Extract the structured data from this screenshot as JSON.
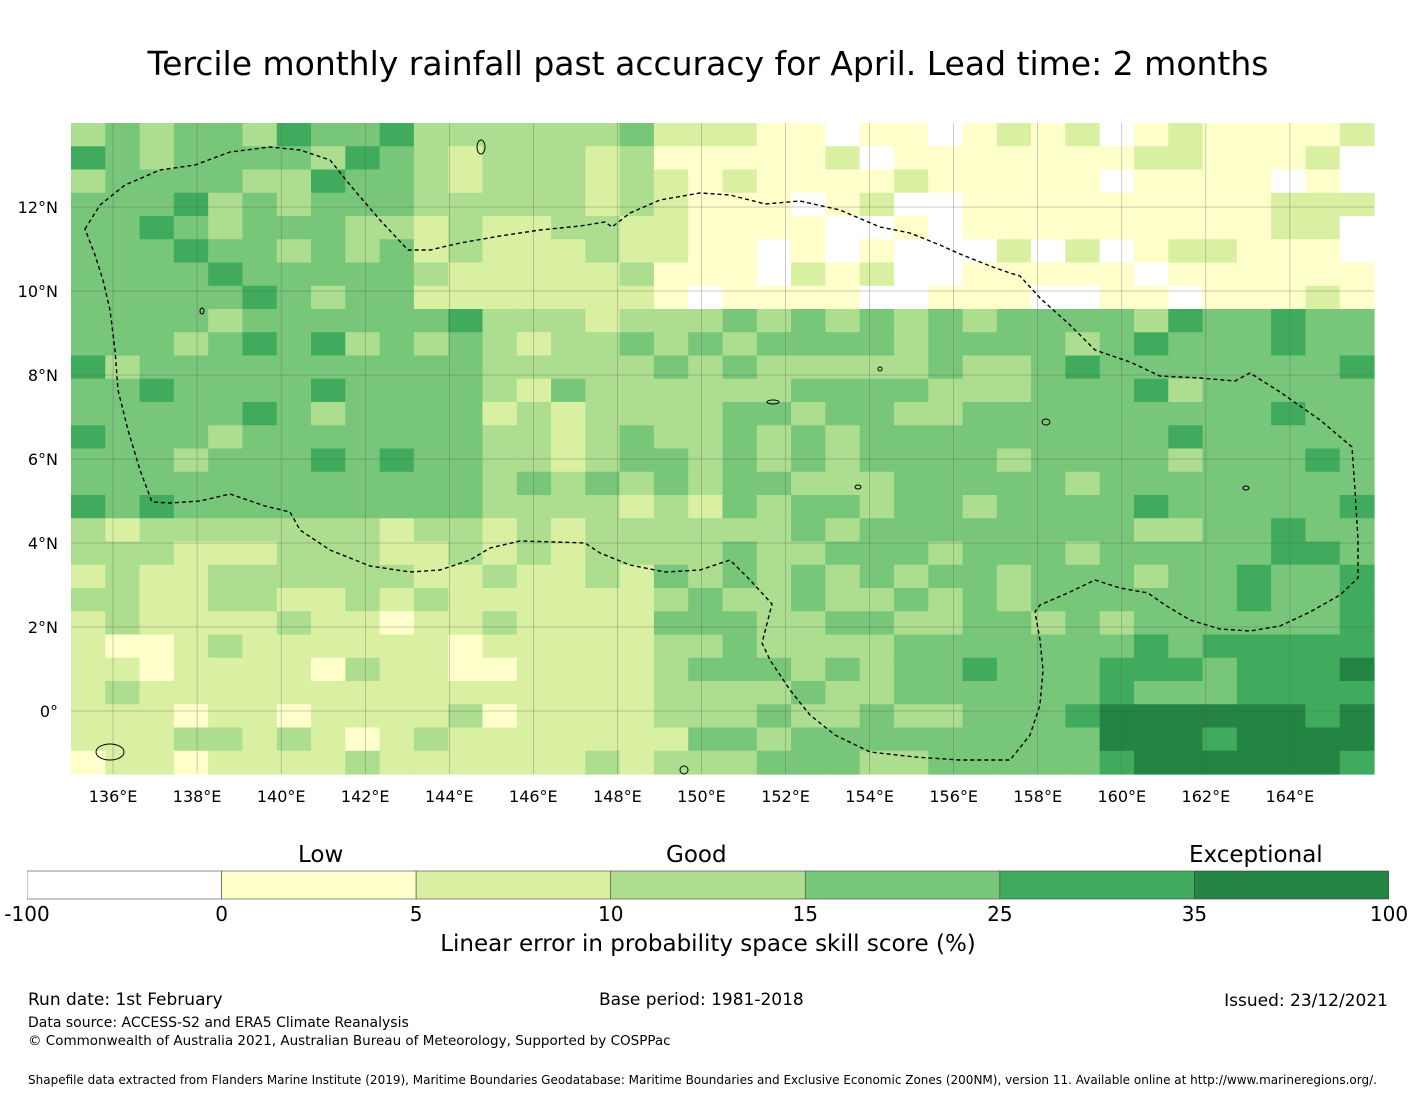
{
  "title": "Tercile monthly rainfall past accuracy for April. Lead time: 2 months",
  "map": {
    "lon_labels": [
      "136°E",
      "138°E",
      "140°E",
      "142°E",
      "144°E",
      "146°E",
      "148°E",
      "150°E",
      "152°E",
      "154°E",
      "156°E",
      "158°E",
      "160°E",
      "162°E",
      "164°E"
    ],
    "lat_labels": [
      "12°N",
      "10°N",
      "8°N",
      "6°N",
      "4°N",
      "2°N",
      "0°"
    ],
    "lon_values": [
      136,
      138,
      140,
      142,
      144,
      146,
      148,
      150,
      152,
      154,
      156,
      158,
      160,
      162,
      164
    ],
    "lat_values": [
      12,
      10,
      8,
      6,
      4,
      2,
      0
    ],
    "lon_range": [
      135,
      166
    ],
    "lat_range": [
      -1.5,
      14
    ]
  },
  "colorbar": {
    "categories": [
      "Low",
      "Good",
      "Exceptional"
    ],
    "ticks": [
      "-100",
      "0",
      "5",
      "10",
      "15",
      "25",
      "35",
      "100"
    ],
    "colors": [
      "#ffffff",
      "#ffffcc",
      "#d9f0a3",
      "#addd8e",
      "#78c679",
      "#41ab5d",
      "#238443"
    ],
    "label": "Linear error in probability space skill score (%)"
  },
  "footer": {
    "run_date": "Run date: 1st February",
    "base_period": "Base period: 1981-2018",
    "issued": "Issued: 23/12/2021",
    "data_source": "Data source: ACCESS-S2 and ERA5 Climate Reanalysis",
    "copyright": "© Commonwealth of Australia 2021, Australian Bureau of Meteorology, Supported by COSPPac",
    "shapefile": "Shapefile data extracted from Flanders Marine Institute (2019), Maritime Boundaries Geodatabase: Maritime Boundaries and Exclusive Economic Zones (200NM), version 11. Available online at http://www.marineregions.org/."
  }
}
